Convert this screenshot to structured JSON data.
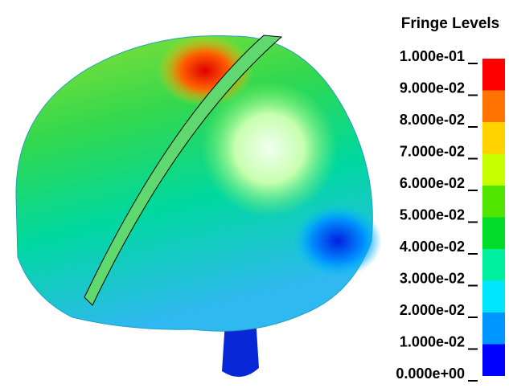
{
  "legend": {
    "title": "Fringe Levels",
    "levels": [
      {
        "value": 0.1,
        "label": "1.000e-01"
      },
      {
        "value": 0.09,
        "label": "9.000e-02"
      },
      {
        "value": 0.08,
        "label": "8.000e-02"
      },
      {
        "value": 0.07,
        "label": "7.000e-02"
      },
      {
        "value": 0.06,
        "label": "6.000e-02"
      },
      {
        "value": 0.05,
        "label": "5.000e-02"
      },
      {
        "value": 0.04,
        "label": "4.000e-02"
      },
      {
        "value": 0.03,
        "label": "3.000e-02"
      },
      {
        "value": 0.02,
        "label": "2.000e-02"
      },
      {
        "value": 0.01,
        "label": "1.000e-02"
      },
      {
        "value": 0,
        "label": "0.000e+00"
      }
    ],
    "colors": [
      "#ff0000",
      "#ff7300",
      "#ffd200",
      "#c8ff00",
      "#50e600",
      "#00dc28",
      "#00f0a0",
      "#00e6ff",
      "#0096ff",
      "#0000ff"
    ]
  }
}
